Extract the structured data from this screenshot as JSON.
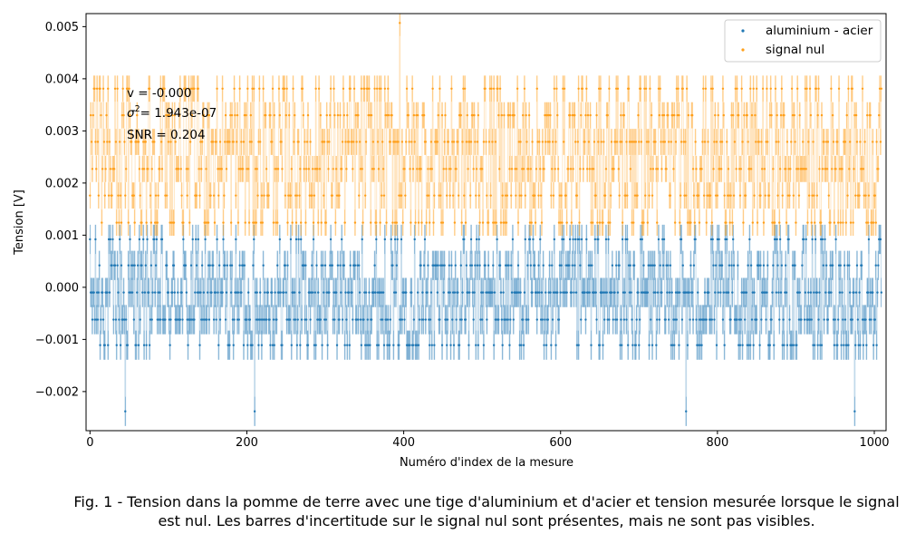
{
  "chart_data": {
    "type": "scatter",
    "xlabel": "Numéro d'index de la mesure",
    "ylabel": "Tension [V]",
    "xlim": [
      -5,
      1015
    ],
    "ylim": [
      -0.00275,
      0.00525
    ],
    "xticks": [
      0,
      200,
      400,
      600,
      800,
      1000
    ],
    "xtick_labels": [
      "0",
      "200",
      "400",
      "600",
      "800",
      "1000"
    ],
    "yticks": [
      -0.002,
      -0.001,
      0.0,
      0.001,
      0.002,
      0.003,
      0.004,
      0.005
    ],
    "ytick_labels": [
      "−0.002",
      "−0.001",
      "0.000",
      "0.001",
      "0.002",
      "0.003",
      "0.004",
      "0.005"
    ],
    "n_points": 1010,
    "legend_position": "upper right",
    "series": [
      {
        "name": "aluminium - acier",
        "color": "#1f77b4",
        "levels": [
          -0.00111,
          -0.00062,
          -0.0001,
          0.00042,
          0.00092
        ],
        "level_weights": [
          0.17,
          0.24,
          0.3,
          0.19,
          0.1
        ],
        "yerr": 0.00028,
        "outlier_low": -0.00238
      },
      {
        "name": "signal nul",
        "color": "#ff9f1a",
        "levels": [
          0.00124,
          0.00176,
          0.00227,
          0.00279,
          0.0033,
          0.00381
        ],
        "level_weights": [
          0.14,
          0.17,
          0.19,
          0.2,
          0.17,
          0.13
        ],
        "yerr": 0.00025,
        "outlier_high": 0.00507
      }
    ],
    "annotations": {
      "mean_text": "v = -0.000",
      "variance_sigma": "σ",
      "variance_sup": "2",
      "variance_value": "= 1.943e-07",
      "snr_text": "SNR = 0.204"
    }
  },
  "caption": "Fig. 1 - Tension dans la pomme de terre avec une tige d'aluminium et d'acier et tension mesurée lorsque le signal est nul. Les barres d'incertitude sur le signal nul sont présentes, mais ne sont pas visibles."
}
